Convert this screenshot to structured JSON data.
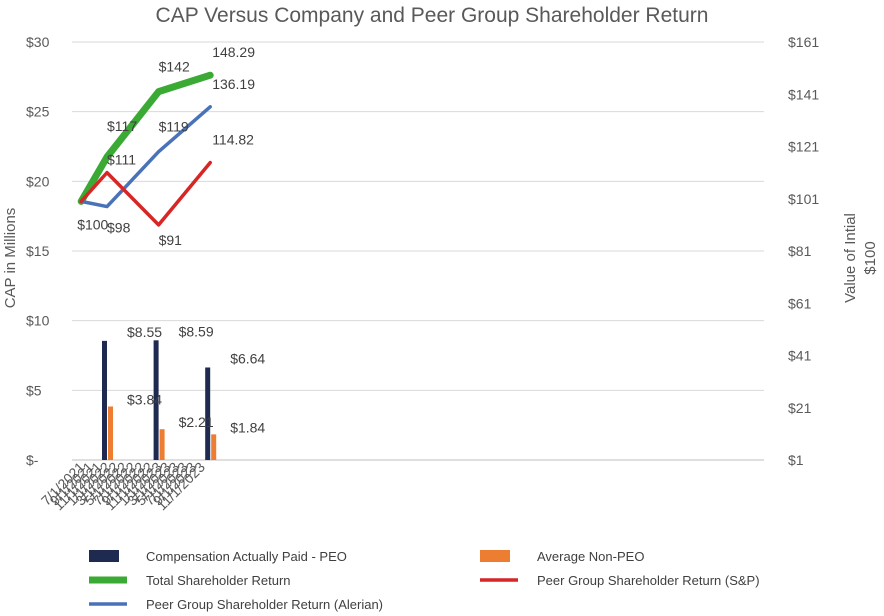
{
  "chart_data": {
    "type": "bar+line",
    "title": "CAP Versus Company and Peer Group Shareholder Return",
    "y_left_label": "CAP in Millions",
    "y_right_label_lines": [
      "Value of Intial",
      "$100"
    ],
    "y_left_range": [
      0,
      30
    ],
    "y_right_range": [
      1,
      161
    ],
    "y_left_ticks": [
      "$-",
      "$5",
      "$10",
      "$15",
      "$20",
      "$25",
      "$30"
    ],
    "y_left_tick_values": [
      0,
      5,
      10,
      15,
      20,
      25,
      30
    ],
    "y_right_ticks": [
      "$1",
      "$21",
      "$41",
      "$61",
      "$81",
      "$101",
      "$121",
      "$141",
      "$161"
    ],
    "y_right_tick_values": [
      1,
      21,
      41,
      61,
      81,
      101,
      121,
      141,
      161
    ],
    "x_tick_labels": [
      "7/1/2021",
      "9/1/2021",
      "11/1/2021",
      "1/1/2022",
      "3/1/2022",
      "5/1/2022",
      "7/1/2022",
      "9/1/2022",
      "11/1/2022",
      "1/1/2023",
      "3/1/2023",
      "5/1/2023",
      "7/1/2023",
      "9/1/2023",
      "11/1/2023"
    ],
    "x_tick_months": [
      0,
      2,
      4,
      6,
      8,
      10,
      12,
      14,
      16,
      18,
      20,
      22,
      24,
      26,
      28
    ],
    "bar_series": [
      {
        "name": "Compensation Actually Paid - PEO",
        "color": "#1f2a50",
        "months": [
          5,
          17,
          29
        ],
        "values": [
          8.55,
          8.59,
          6.64
        ],
        "labels": [
          "$8.55",
          "$8.59",
          "$6.64"
        ]
      },
      {
        "name": "Average Non-PEO",
        "color": "#ed7d31",
        "months": [
          5,
          17,
          29
        ],
        "values": [
          3.84,
          2.21,
          1.84
        ],
        "labels": [
          "$3.84",
          "$2.21",
          "$1.84"
        ]
      }
    ],
    "line_series": [
      {
        "name": "Total Shareholder Return",
        "color": "#3aaa35",
        "months": [
          -1,
          5,
          17,
          29
        ],
        "values": [
          100,
          117,
          142,
          148.29
        ],
        "labels": [
          "$100",
          "$117",
          "$142",
          "148.29"
        ]
      },
      {
        "name": "Peer Group Shareholder Return (S&P)",
        "color": "#d62626",
        "months": [
          -1,
          5,
          17,
          29
        ],
        "values": [
          100,
          111,
          91,
          114.82
        ],
        "labels": [
          "",
          "$111",
          "$91",
          "114.82"
        ]
      },
      {
        "name": "Peer Group Shareholder Return (Alerian)",
        "color": "#4a72b8",
        "months": [
          -1,
          5,
          17,
          29
        ],
        "values": [
          100,
          98,
          119,
          136.19
        ],
        "labels": [
          "",
          "$98",
          "$119",
          "136.19"
        ]
      }
    ],
    "legend_position": "bottom"
  }
}
